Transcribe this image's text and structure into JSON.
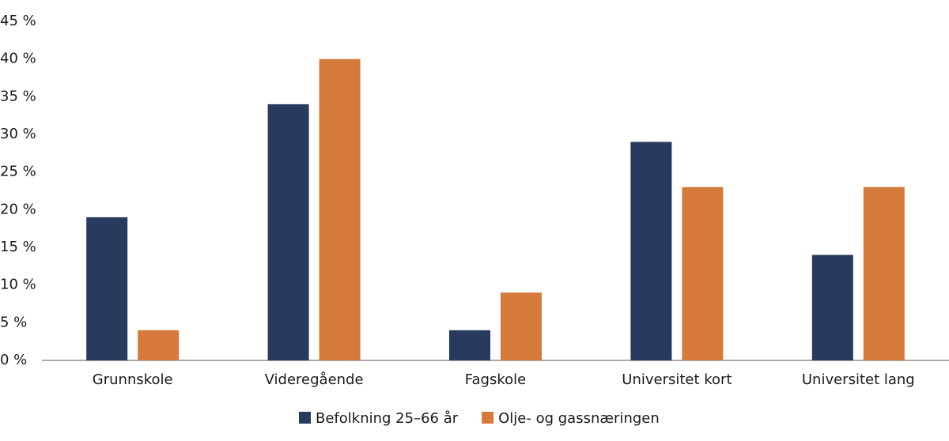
{
  "chart_data": {
    "type": "bar",
    "categories": [
      "Grunnskole",
      "Videregående",
      "Fagskole",
      "Universitet kort",
      "Universitet lang"
    ],
    "series": [
      {
        "name": "Befolkning 25–66 år",
        "color": "#283a5e",
        "values": [
          19,
          34,
          4,
          29,
          14
        ]
      },
      {
        "name": "Olje- og gassnæringen",
        "color": "#d67a3c",
        "values": [
          4,
          40,
          9,
          23,
          23
        ]
      }
    ],
    "ylim": [
      0,
      45
    ],
    "yticks": [
      {
        "value": 0,
        "label": "0 %"
      },
      {
        "value": 5,
        "label": "5 %"
      },
      {
        "value": 10,
        "label": "10 %"
      },
      {
        "value": 15,
        "label": "15 %"
      },
      {
        "value": 20,
        "label": "20 %"
      },
      {
        "value": 25,
        "label": "25 %"
      },
      {
        "value": 30,
        "label": "30 %"
      },
      {
        "value": 35,
        "label": "35 %"
      },
      {
        "value": 40,
        "label": "40 %"
      },
      {
        "value": 45,
        "label": "45 %"
      }
    ],
    "grid": false,
    "legend": "bottom"
  }
}
